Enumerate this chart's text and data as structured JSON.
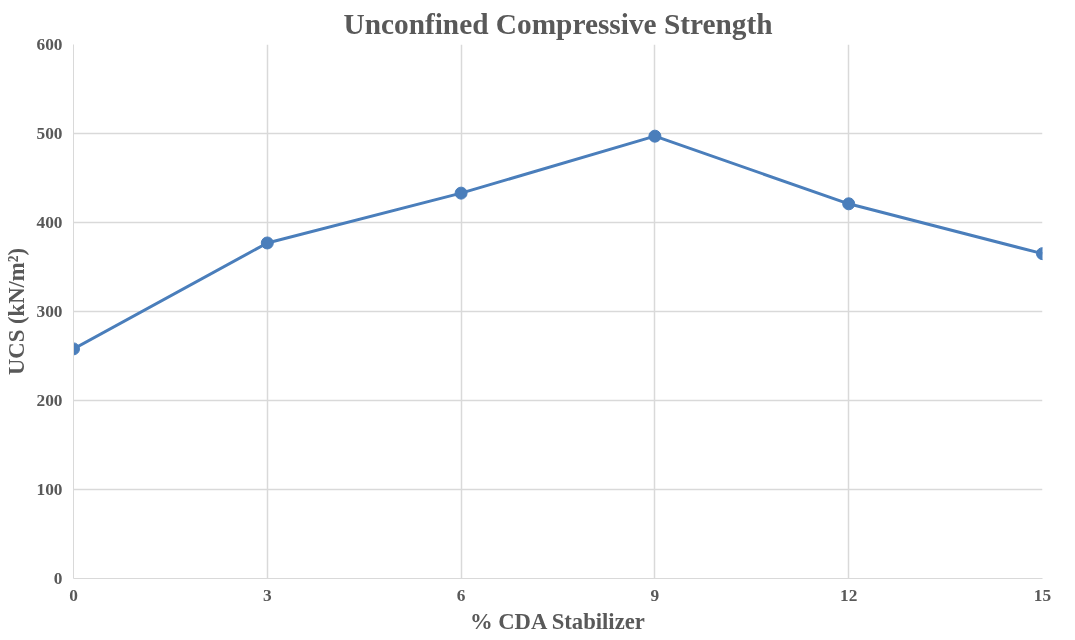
{
  "chart_data": {
    "type": "line",
    "title": "Unconfined Compressive Strength",
    "xlabel": "% CDA Stabilizer",
    "ylabel": "UCS (kN/m²)",
    "x": [
      0,
      3,
      6,
      9,
      12,
      15
    ],
    "series": [
      {
        "color": "#4a7ebb",
        "values": [
          258,
          377,
          433,
          497,
          421,
          365
        ]
      }
    ],
    "xlim": [
      0,
      15
    ],
    "xticks": [
      0,
      3,
      6,
      9,
      12,
      15
    ],
    "ylim": [
      0,
      600
    ],
    "yticks": [
      0,
      100,
      200,
      300,
      400,
      500,
      600
    ],
    "grid": true,
    "marker": "circle",
    "line_style": "solid"
  }
}
